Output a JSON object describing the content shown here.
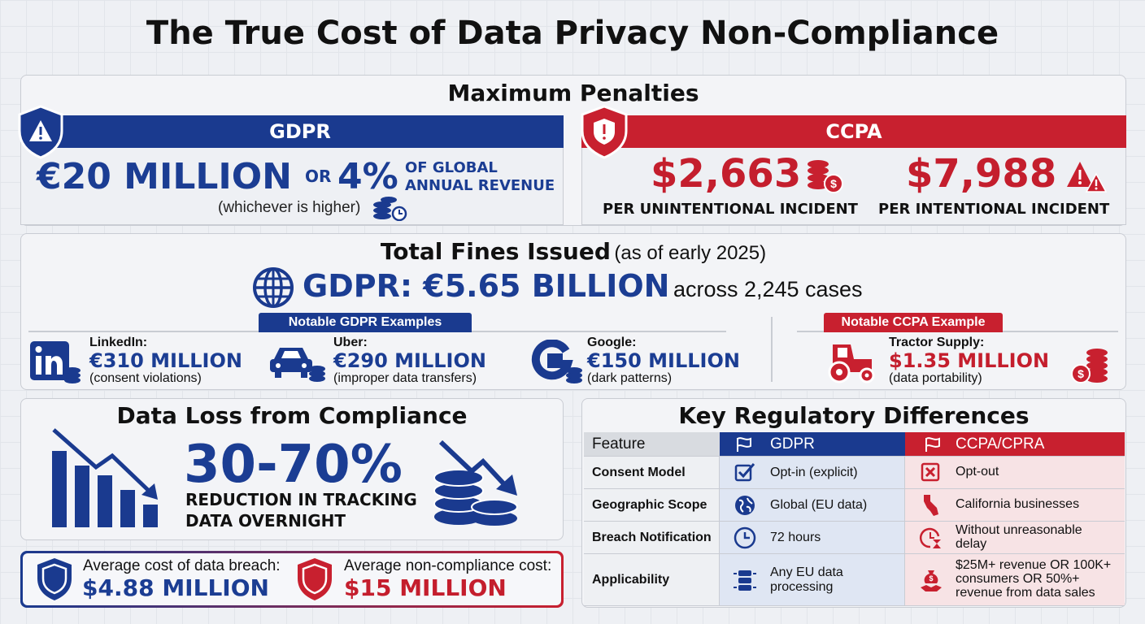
{
  "title": "The True Cost of Data Privacy Non-Compliance",
  "penalties": {
    "heading": "Maximum Penalties",
    "gdpr": {
      "label": "GDPR",
      "amount": "€20 MILLION",
      "or": "OR",
      "percent": "4%",
      "percent_text": [
        "OF GLOBAL",
        "ANNUAL REVENUE"
      ],
      "note": "(whichever is higher)"
    },
    "ccpa": {
      "label": "CCPA",
      "items": [
        {
          "amount": "$2,663",
          "text": "PER UNINTENTIONAL INCIDENT"
        },
        {
          "amount": "$7,988",
          "text": "PER INTENTIONAL INCIDENT"
        }
      ]
    }
  },
  "fines": {
    "heading": "Total Fines Issued",
    "heading_note": "(as of early 2025)",
    "total": "GDPR: €5.65 BILLION",
    "total_note": "across 2,245 cases",
    "gdpr_examples_label": "Notable GDPR Examples",
    "gdpr_examples": [
      {
        "company": "LinkedIn:",
        "amount": "€310 MILLION",
        "reason": "(consent violations)"
      },
      {
        "company": "Uber:",
        "amount": "€290 MILLION",
        "reason": "(improper data transfers)"
      },
      {
        "company": "Google:",
        "amount": "€150 MILLION",
        "reason": "(dark patterns)"
      }
    ],
    "ccpa_example_label": "Notable CCPA Example",
    "ccpa_example": {
      "company": "Tractor Supply:",
      "amount": "$1.35 MILLION",
      "reason": "(data portability)"
    }
  },
  "data_loss": {
    "heading": "Data Loss from Compliance",
    "value": "30-70%",
    "text": [
      "REDUCTION IN TRACKING",
      "DATA OVERNIGHT"
    ]
  },
  "costs": [
    {
      "label": "Average cost of data breach:",
      "value": "$4.88 MILLION"
    },
    {
      "label": "Average non-compliance cost:",
      "value": "$15 MILLION"
    }
  ],
  "differences": {
    "heading": "Key Regulatory Differences",
    "columns": [
      "Feature",
      "GDPR",
      "CCPA/CPRA"
    ],
    "rows": [
      [
        "Consent Model",
        "Opt-in (explicit)",
        "Opt-out"
      ],
      [
        "Geographic Scope",
        "Global (EU data)",
        "California businesses"
      ],
      [
        "Breach Notification",
        "72 hours",
        "Without unreasonable delay"
      ],
      [
        "Applicability",
        "Any EU data processing",
        "$25M+ revenue OR 100K+ consumers OR 50%+ revenue from data sales"
      ]
    ]
  }
}
